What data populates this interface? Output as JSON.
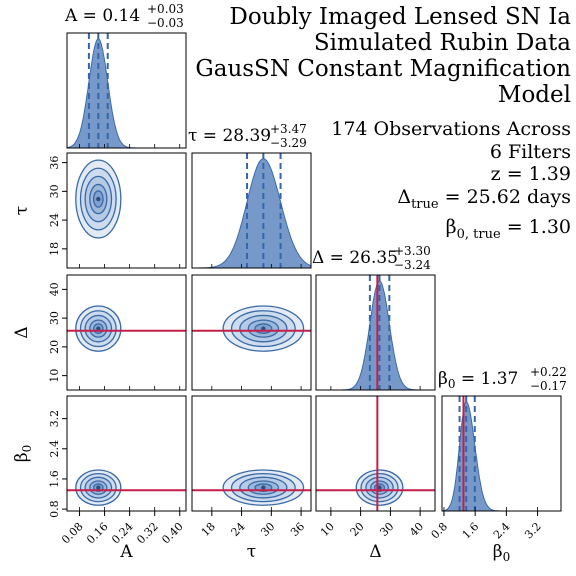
{
  "title_lines": [
    "Doubly Imaged Lensed SN Ia",
    "Simulated Rubin Data",
    "GausSN Constant Magnification",
    "Model"
  ],
  "info": {
    "obs_line1": "174 Observations Across",
    "obs_line2": "6 Filters",
    "z_text": "z = 1.39",
    "delta_true_sym": "Δ",
    "delta_true_sub": "true",
    "delta_true_val": " = 25.62 days",
    "beta_true_sym": "β",
    "beta_true_sub": "0, true",
    "beta_true_val": " = 1.30"
  },
  "colors": {
    "fill": "#7699c9",
    "line": "#3c6ba8",
    "dash": "#3565aa",
    "truth": "#c41e4a",
    "contour": "#3b6aa6"
  },
  "chart_data": {
    "type": "corner",
    "params": [
      {
        "name": "A",
        "symbol": "A",
        "range": [
          0.04,
          0.42
        ],
        "ticks": [
          0.08,
          0.16,
          0.24,
          0.32,
          0.4
        ],
        "tick_labels": [
          "0.08",
          "0.16",
          "0.24",
          "0.32",
          "0.40"
        ],
        "median": 0.14,
        "plus": 0.03,
        "minus": 0.03,
        "median_text": "0.14",
        "plus_text": "+0.03",
        "minus_text": "−0.03",
        "truth": null
      },
      {
        "name": "tau",
        "symbol": "τ",
        "range": [
          14,
          38
        ],
        "ticks": [
          18,
          24,
          30,
          36
        ],
        "tick_labels": [
          "18",
          "24",
          "30",
          "36"
        ],
        "median": 28.39,
        "plus": 3.47,
        "minus": 3.29,
        "median_text": "28.39",
        "plus_text": "+3.47",
        "minus_text": "−3.29",
        "truth": null
      },
      {
        "name": "Delta",
        "symbol": "Δ",
        "range": [
          5,
          45
        ],
        "ticks": [
          10,
          20,
          30,
          40
        ],
        "tick_labels": [
          "10",
          "20",
          "30",
          "40"
        ],
        "median": 26.35,
        "plus": 3.3,
        "minus": 3.24,
        "median_text": "26.35",
        "plus_text": "+3.30",
        "minus_text": "−3.24",
        "truth": 25.62
      },
      {
        "name": "beta0",
        "symbol": "β",
        "symbol_sub": "0",
        "range": [
          0.75,
          3.8
        ],
        "ticks": [
          0.8,
          1.6,
          2.4,
          3.2
        ],
        "tick_labels": [
          "0.8",
          "1.6",
          "2.4",
          "3.2"
        ],
        "median": 1.37,
        "plus": 0.22,
        "minus": 0.17,
        "median_text": "1.37",
        "plus_text": "+0.22",
        "minus_text": "−0.17",
        "truth": 1.3
      }
    ]
  }
}
